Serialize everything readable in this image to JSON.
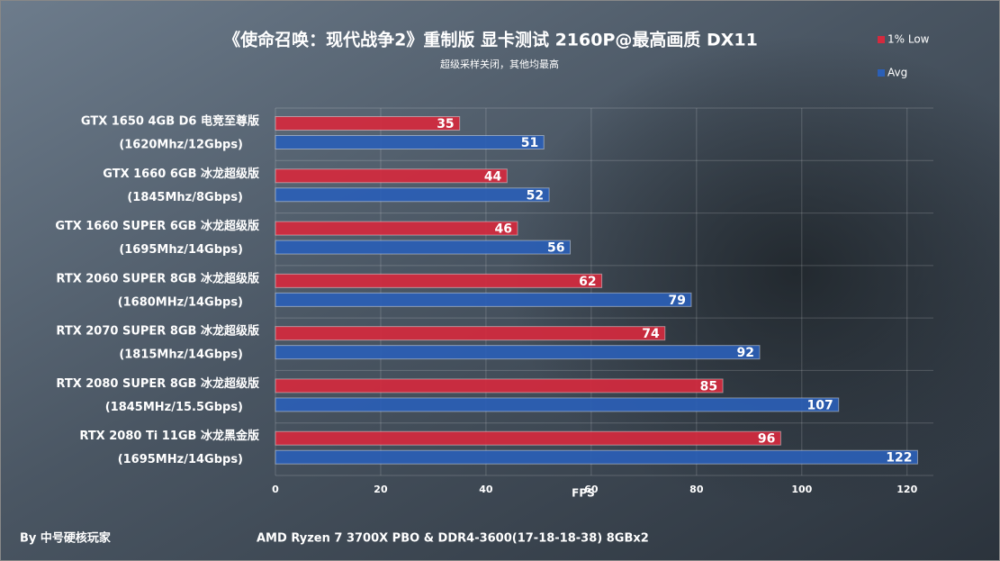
{
  "chart_data": {
    "type": "bar",
    "orientation": "horizontal",
    "title": "《使命召唤：现代战争2》重制版  显卡测试  2160P@最高画质  DX11",
    "subtitle": "超级采样关闭，其他均最高",
    "x_label": "FPS",
    "categories": [
      [
        "GTX 1650 4GB D6 电竞至尊版",
        "(1620Mhz/12Gbps)"
      ],
      [
        "GTX 1660 6GB 冰龙超级版",
        "(1845Mhz/8Gbps)"
      ],
      [
        "GTX 1660 SUPER 6GB 冰龙超级版",
        "(1695Mhz/14Gbps)"
      ],
      [
        "RTX 2060 SUPER 8GB 冰龙超级版",
        "(1680MHz/14Gbps)"
      ],
      [
        "RTX 2070 SUPER 8GB 冰龙超级版",
        "(1815Mhz/14Gbps)"
      ],
      [
        "RTX 2080 SUPER 8GB 冰龙超级版",
        "(1845MHz/15.5Gbps)"
      ],
      [
        "RTX 2080 Ti 11GB 冰龙黑金版",
        "(1695MHz/14Gbps)"
      ]
    ],
    "series": [
      {
        "name": "1% Low",
        "color": "#d42a3e",
        "values": [
          35,
          44,
          46,
          62,
          74,
          85,
          96
        ]
      },
      {
        "name": "Avg",
        "color": "#2b5fb6",
        "values": [
          51,
          52,
          56,
          79,
          92,
          107,
          122
        ]
      }
    ],
    "xlim": [
      0,
      125
    ],
    "xticks": [
      0,
      20,
      40,
      60,
      80,
      100,
      120
    ],
    "grid": true,
    "legend": "top-right",
    "footer_left": "By 中号硬核玩家",
    "footer_center": "AMD Ryzen 7 3700X PBO & DDR4-3600(17-18-18-38) 8GBx2"
  }
}
